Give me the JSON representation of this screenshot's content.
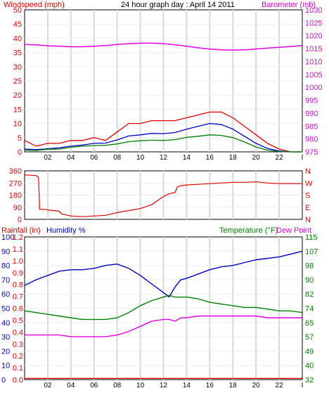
{
  "chart_data": [
    {
      "type": "line",
      "title": "24 hour graph day : April 14 2011",
      "ylabel_left": "Windspeed (mph)",
      "ylabel_right": "Barometer (mb)",
      "x_ticks": [
        "02",
        "04",
        "06",
        "08",
        "10",
        "12",
        "14",
        "16",
        "18",
        "20",
        "22",
        "I"
      ],
      "x_range": [
        0,
        24
      ],
      "ylim_left": [
        0,
        50
      ],
      "ylim_right": [
        975,
        1030
      ],
      "y_ticks_left": [
        "0",
        "5",
        "10",
        "15",
        "20",
        "25",
        "30",
        "35",
        "40",
        "45",
        "50"
      ],
      "y_ticks_right": [
        "975",
        "980",
        "985",
        "990",
        "995",
        "1000",
        "1005",
        "1010",
        "1015",
        "1020",
        "1025",
        "1030"
      ],
      "grid": true,
      "colors": {
        "gust": "#e00000",
        "avg": "#0000c0",
        "wind": "#008000",
        "baro": "#e000e0",
        "axis_left": "#e00000",
        "axis_right": "#e000e0"
      },
      "series": [
        {
          "key": "baro",
          "axis": "right",
          "x": [
            0,
            1,
            2,
            3,
            4,
            5,
            6,
            7,
            8,
            9,
            10,
            11,
            12,
            13,
            14,
            15,
            16,
            17,
            18,
            19,
            20,
            21,
            22,
            23,
            24
          ],
          "values": [
            1016.6,
            1016.4,
            1016.1,
            1015.9,
            1015.7,
            1015.7,
            1015.9,
            1016.2,
            1016.6,
            1016.9,
            1017.1,
            1017.1,
            1016.9,
            1016.5,
            1015.9,
            1015.3,
            1014.8,
            1014.5,
            1014.4,
            1014.5,
            1014.8,
            1015.2,
            1015.5,
            1015.8,
            1016.2
          ]
        },
        {
          "key": "gust",
          "axis": "left",
          "x": [
            0,
            1,
            2,
            3,
            4,
            5,
            6,
            7,
            8,
            9,
            10,
            11,
            12,
            13,
            14,
            15,
            16,
            17,
            18,
            19,
            20,
            21,
            22,
            23,
            24
          ],
          "values": [
            4,
            2,
            3,
            3,
            4,
            4,
            5,
            4,
            7,
            10,
            10,
            11,
            11,
            11,
            12,
            13,
            14,
            14,
            12,
            9,
            6,
            3,
            1,
            0,
            0
          ]
        },
        {
          "key": "avg",
          "axis": "left",
          "x": [
            0,
            1,
            2,
            3,
            4,
            5,
            6,
            7,
            8,
            9,
            10,
            11,
            12,
            13,
            14,
            15,
            16,
            17,
            18,
            19,
            20,
            21,
            22,
            23,
            24
          ],
          "values": [
            1,
            0.8,
            1.1,
            1.4,
            2,
            2.4,
            3,
            3.1,
            4.2,
            5.6,
            6,
            6.5,
            6.4,
            6.8,
            8,
            9,
            10,
            9.6,
            8,
            5.5,
            3,
            1.2,
            0.3,
            0,
            0
          ]
        },
        {
          "key": "wind",
          "axis": "left",
          "x": [
            0,
            1,
            2,
            3,
            4,
            5,
            6,
            7,
            8,
            9,
            10,
            11,
            12,
            13,
            14,
            15,
            16,
            17,
            18,
            19,
            20,
            21,
            22,
            23,
            24
          ],
          "values": [
            0.6,
            0.5,
            0.9,
            1,
            1.6,
            2,
            2.2,
            2.3,
            2.8,
            3.6,
            3.9,
            4.1,
            4,
            4.3,
            5.1,
            5.5,
            6,
            5.8,
            5,
            3.5,
            1.7,
            0.6,
            0.1,
            0,
            0
          ]
        }
      ]
    },
    {
      "type": "line",
      "ylim_left": [
        0,
        360
      ],
      "y_ticks_left": [
        "0",
        "90",
        "180",
        "270",
        "360"
      ],
      "y_ticks_right": [
        "N",
        "E",
        "S",
        "W",
        "N"
      ],
      "x_range": [
        0,
        24
      ],
      "grid": true,
      "colors": {
        "dir": "#e00000"
      },
      "series": [
        {
          "key": "dir",
          "x": [
            0,
            1,
            1.2,
            1.3,
            1.9,
            2,
            3,
            3.2,
            4,
            5,
            6,
            7,
            7.5,
            8,
            9,
            10,
            11,
            11.5,
            12,
            12.5,
            13,
            13.2,
            13.5,
            14,
            15,
            16,
            17,
            18,
            19,
            20,
            21,
            22,
            23,
            24
          ],
          "values": [
            330,
            325,
            310,
            75,
            72,
            70,
            60,
            40,
            25,
            20,
            25,
            30,
            40,
            50,
            65,
            80,
            110,
            140,
            170,
            190,
            200,
            240,
            250,
            255,
            260,
            265,
            270,
            275,
            275,
            278,
            270,
            265,
            265,
            265
          ]
        }
      ]
    },
    {
      "type": "line",
      "ylabel_left_1": "Rainfall (in)",
      "ylabel_left_2": "Humidity %",
      "ylabel_right_1": "Temperature (°F)",
      "ylabel_right_2": "Dew Point",
      "y_ticks_left_humidity": [
        "0",
        "10",
        "20",
        "30",
        "40",
        "50",
        "60",
        "70",
        "80",
        "90",
        "100"
      ],
      "y_ticks_left_rain": [
        "0.0",
        "0.1",
        "0.2",
        "0.3",
        "0.4",
        "0.5",
        "0.6",
        "0.7",
        "0.8",
        "0.9",
        "1.0",
        "1.1",
        "1.2"
      ],
      "y_ticks_right": [
        "32",
        "40",
        "49",
        "57",
        "65",
        "74",
        "82",
        "90",
        "98",
        "107",
        "115"
      ],
      "x_ticks": [
        "02",
        "04",
        "06",
        "08",
        "10",
        "12",
        "14",
        "16",
        "18",
        "20",
        "22",
        "I"
      ],
      "x_range": [
        0,
        24
      ],
      "ylim_humidity": [
        0,
        100
      ],
      "ylim_temp": [
        32,
        115
      ],
      "grid": true,
      "colors": {
        "humidity": "#0000c0",
        "temp": "#008000",
        "dew": "#e000e0",
        "rain": "#e00000"
      },
      "series": [
        {
          "key": "humidity",
          "axis": "left",
          "x": [
            0,
            1,
            2,
            3,
            4,
            5,
            6,
            7,
            8,
            9,
            10,
            11,
            12,
            12.5,
            13,
            13.5,
            14,
            15,
            16,
            17,
            18,
            19,
            20,
            21,
            22,
            23,
            24
          ],
          "values": [
            66,
            70,
            73,
            76,
            77,
            77,
            78,
            80,
            81,
            78,
            73,
            67,
            61,
            58,
            65,
            70,
            71,
            74,
            77,
            79,
            80,
            82,
            84,
            85,
            86,
            88,
            90
          ]
        },
        {
          "key": "temp",
          "axis": "right",
          "x": [
            0,
            1,
            2,
            3,
            4,
            5,
            6,
            7,
            8,
            9,
            10,
            11,
            12,
            12.5,
            13,
            13.5,
            14,
            15,
            16,
            17,
            18,
            19,
            20,
            21,
            22,
            23,
            24
          ],
          "values": [
            72,
            71,
            70,
            69,
            68,
            67,
            67,
            67,
            68,
            71,
            75,
            78,
            80,
            81,
            80,
            80,
            80,
            79,
            77,
            76,
            75,
            74,
            74,
            73,
            72,
            72,
            71
          ]
        },
        {
          "key": "dew",
          "axis": "right",
          "x": [
            0,
            1,
            2,
            3,
            4,
            5,
            6,
            7,
            8,
            9,
            10,
            11,
            12,
            12.5,
            13,
            13.5,
            14,
            15,
            16,
            17,
            18,
            19,
            20,
            21,
            22,
            23,
            24
          ],
          "values": [
            58,
            58,
            58,
            58,
            57,
            57,
            57,
            57,
            58,
            60,
            63,
            66,
            67,
            67,
            66,
            68,
            68,
            69,
            69,
            69,
            69,
            69,
            69,
            68,
            68,
            68,
            68
          ]
        },
        {
          "key": "rain",
          "axis": "left",
          "x": [
            0,
            24
          ],
          "values": [
            0.01,
            0.01
          ]
        }
      ]
    }
  ]
}
